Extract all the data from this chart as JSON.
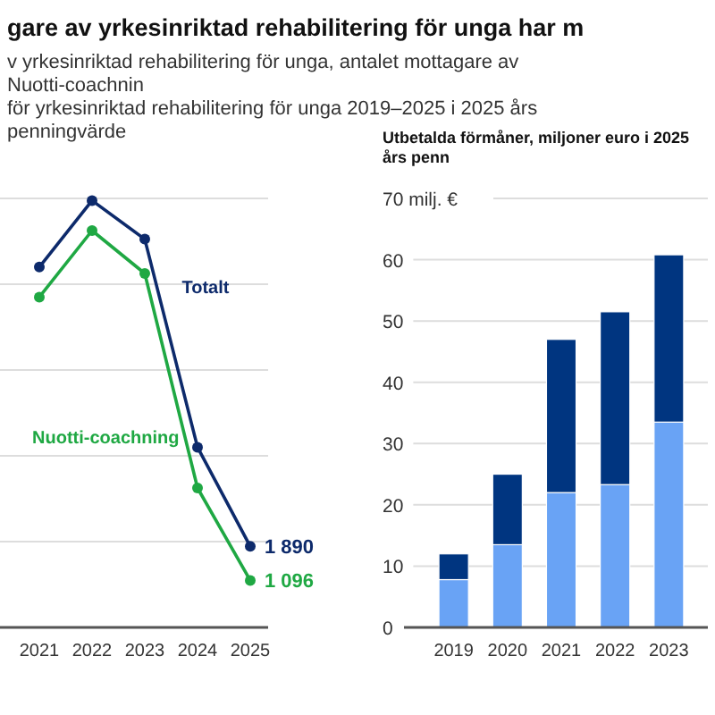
{
  "chart_data": [
    {
      "type": "line",
      "title": "gare av yrkesinriktad rehabilitering för unga har m",
      "subtitle": "v yrkesinriktad rehabilitering för unga, antalet mottagare av Nuotti-coachnin\nför yrkesinriktad rehabilitering för unga 2019–2025 i 2025 års penningvärde",
      "categories": [
        "2021",
        "2022",
        "2023",
        "2024",
        "2025"
      ],
      "series": [
        {
          "name": "Totalt",
          "color": "#0d2a6b",
          "values": [
            8400,
            9950,
            9050,
            4200,
            1890
          ],
          "value_labels": [
            null,
            null,
            null,
            null,
            "1 890"
          ]
        },
        {
          "name": "Nuotti-coachning",
          "color": "#1fa843",
          "values": [
            7700,
            9250,
            8250,
            3250,
            1096
          ],
          "value_labels": [
            null,
            null,
            null,
            null,
            "1 096"
          ]
        }
      ],
      "ylim": [
        0,
        10000
      ],
      "yticks": [
        {
          "value": 0,
          "label": null
        },
        {
          "value": 2000,
          "label": null
        },
        {
          "value": 4000,
          "label": null
        },
        {
          "value": 6000,
          "label": null
        },
        {
          "value": 8000,
          "label": null
        },
        {
          "value": 10000,
          "label": null
        }
      ],
      "tick_labels": "x",
      "grid": "y",
      "marker": "circle",
      "line_style": "solid"
    },
    {
      "type": "bar",
      "stacked": true,
      "subtitle": "Utbetalda förmåner, miljoner euro i 2025 års penn",
      "categories": [
        "2019",
        "2020",
        "2021",
        "2022",
        "2023"
      ],
      "series": [
        {
          "color": "#69a3f5",
          "values": [
            7.8,
            13.5,
            22,
            23.3,
            33.5
          ]
        },
        {
          "color": "#003580",
          "values": [
            4.2,
            11.5,
            25,
            28.2,
            27.3
          ]
        }
      ],
      "ylim": [
        0,
        70
      ],
      "yticks": [
        0,
        10,
        20,
        30,
        40,
        50,
        60,
        {
          "value": 70,
          "label": "70 milj. €"
        }
      ],
      "grid": "y"
    }
  ]
}
